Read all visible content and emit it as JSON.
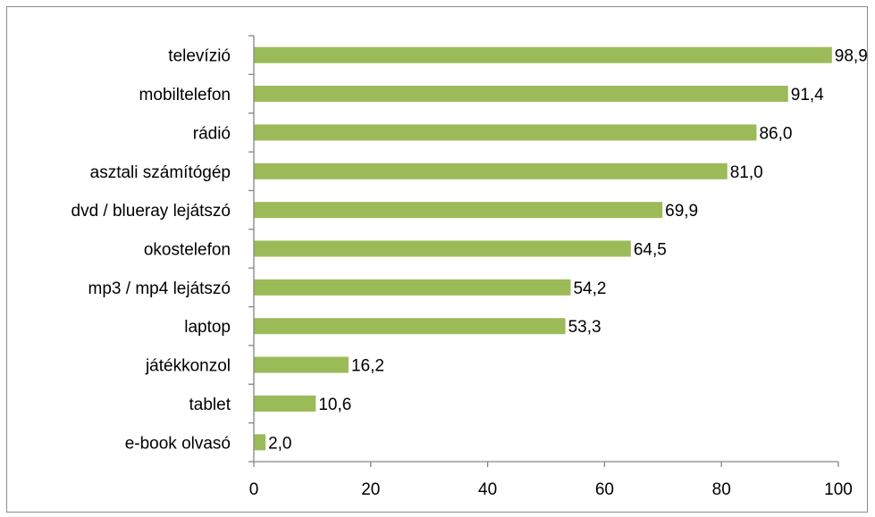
{
  "chart_data": {
    "type": "bar",
    "orientation": "horizontal",
    "categories": [
      "televízió",
      "mobiltelefon",
      "rádió",
      "asztali számítógép",
      "dvd / blueray lejátszó",
      "okostelefon",
      "mp3 / mp4 lejátszó",
      "laptop",
      "játékkonzol",
      "tablet",
      "e-book olvasó"
    ],
    "values": [
      98.9,
      91.4,
      86.0,
      81.0,
      69.9,
      64.5,
      54.2,
      53.3,
      16.2,
      10.6,
      2.0
    ],
    "value_labels": [
      "98,9",
      "91,4",
      "86,0",
      "81,0",
      "69,9",
      "64,5",
      "54,2",
      "53,3",
      "16,2",
      "10,6",
      "2,0"
    ],
    "title": "",
    "xlabel": "",
    "ylabel": "",
    "xlim": [
      0,
      100
    ],
    "xticks": [
      0,
      20,
      40,
      60,
      80,
      100
    ],
    "xtick_labels": [
      "0",
      "20",
      "40",
      "60",
      "80",
      "100"
    ],
    "grid": false,
    "legend": "none",
    "bar_color": "#9bbb59",
    "axis_color": "#868686"
  }
}
